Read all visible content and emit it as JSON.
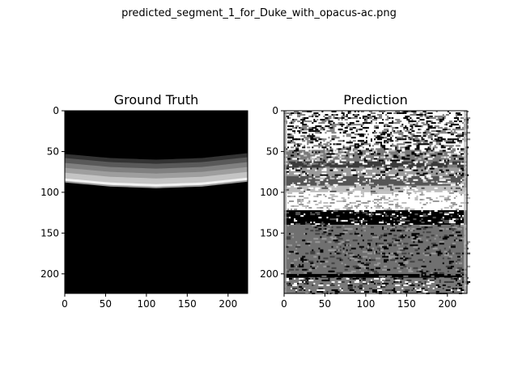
{
  "figure": {
    "suptitle": "predicted_segment_1_for_Duke_with_opacus-ac.png"
  },
  "chart_data": [
    {
      "type": "heatmap",
      "title": "Ground Truth",
      "xlabel": "",
      "ylabel": "",
      "xlim": [
        0,
        224
      ],
      "ylim": [
        224,
        0
      ],
      "xticks": [
        0,
        50,
        100,
        150,
        200
      ],
      "yticks": [
        0,
        50,
        100,
        150,
        200
      ],
      "colormap": "gray",
      "grid": false,
      "boundaries": {
        "x": [
          0,
          56,
          112,
          168,
          224
        ],
        "layer_tops_y": [
          [
            53,
            58,
            60,
            58,
            52
          ],
          [
            58,
            63,
            65,
            63,
            57
          ],
          [
            64,
            69,
            71,
            69,
            63
          ],
          [
            70,
            75,
            77,
            75,
            69
          ],
          [
            76,
            81,
            83,
            81,
            75
          ],
          [
            83,
            88,
            90,
            88,
            82
          ],
          [
            86,
            91,
            93,
            91,
            85
          ],
          [
            88,
            93,
            95,
            93,
            87
          ]
        ],
        "layer_gray_levels": [
          "#333333",
          "#595959",
          "#808080",
          "#9e9e9e",
          "#c4c4c4",
          "#f2f2f2",
          "#9a9a9a",
          "#000000"
        ]
      }
    },
    {
      "type": "heatmap",
      "title": "Prediction",
      "xlabel": "",
      "ylabel": "",
      "xlim": [
        0,
        224
      ],
      "ylim": [
        224,
        0
      ],
      "xticks": [
        0,
        50,
        100,
        150,
        200
      ],
      "yticks": [
        0,
        50,
        100,
        150,
        200
      ],
      "colormap": "gray",
      "grid": false,
      "bands": [
        {
          "y0": 0,
          "y1": 48,
          "base": "#ffffff",
          "noise": [
            "#000000",
            "#7f7f7f"
          ],
          "density": 0.55
        },
        {
          "y0": 48,
          "y1": 62,
          "base": "#7a7a7a",
          "noise": [
            "#000000",
            "#ffffff",
            "#bfbfbf"
          ],
          "density": 0.5
        },
        {
          "y0": 62,
          "y1": 70,
          "base": "#3a3a3a",
          "noise": [
            "#ffffff",
            "#7f7f7f"
          ],
          "density": 0.35
        },
        {
          "y0": 70,
          "y1": 80,
          "base": "#9a9a9a",
          "noise": [
            "#000000",
            "#ffffff"
          ],
          "density": 0.35
        },
        {
          "y0": 80,
          "y1": 92,
          "base": "#555555",
          "noise": [
            "#ffffff",
            "#bfbfbf"
          ],
          "density": 0.35
        },
        {
          "y0": 92,
          "y1": 100,
          "base": "#bdbdbd",
          "noise": [
            "#ffffff",
            "#555555"
          ],
          "density": 0.3
        },
        {
          "y0": 100,
          "y1": 122,
          "base": "#ffffff",
          "noise": [
            "#bfbfbf",
            "#9a9a9a"
          ],
          "density": 0.3
        },
        {
          "y0": 122,
          "y1": 140,
          "base": "#000000",
          "noise": [
            "#555555",
            "#ffffff"
          ],
          "density": 0.3
        },
        {
          "y0": 140,
          "y1": 200,
          "base": "#707070",
          "noise": [
            "#404040",
            "#000000",
            "#9a9a9a"
          ],
          "density": 0.3
        },
        {
          "y0": 200,
          "y1": 205,
          "base": "#000000",
          "noise": [
            "#707070"
          ],
          "density": 0.2
        },
        {
          "y0": 205,
          "y1": 224,
          "base": "#7a7a7a",
          "noise": [
            "#000000",
            "#ffffff",
            "#3a3a3a"
          ],
          "density": 0.35
        }
      ]
    }
  ]
}
